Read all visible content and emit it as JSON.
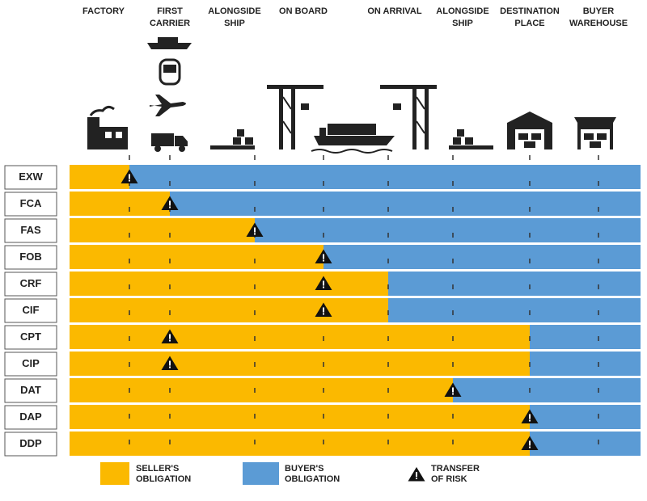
{
  "stages": [
    [
      "FACTORY"
    ],
    [
      "FIRST",
      "CARRIER"
    ],
    [
      "ALONGSIDE",
      "SHIP"
    ],
    [
      "ON BOARD"
    ],
    [
      "ON ARRIVAL"
    ],
    [
      "ALONGSIDE",
      "SHIP"
    ],
    [
      "DESTINATION",
      "PLACE"
    ],
    [
      "BUYER",
      "WAREHOUSE"
    ]
  ],
  "terms": [
    "EXW",
    "FCA",
    "FAS",
    "FOB",
    "CRF",
    "CIF",
    "CPT",
    "CIP",
    "DAT",
    "DAP",
    "DDP"
  ],
  "legend": {
    "seller": [
      "SELLER'S",
      "OBLIGATION"
    ],
    "buyer": [
      "BUYER'S",
      "OBLIGATION"
    ],
    "risk": [
      "TRANSFER",
      "OF RISK"
    ]
  }
}
